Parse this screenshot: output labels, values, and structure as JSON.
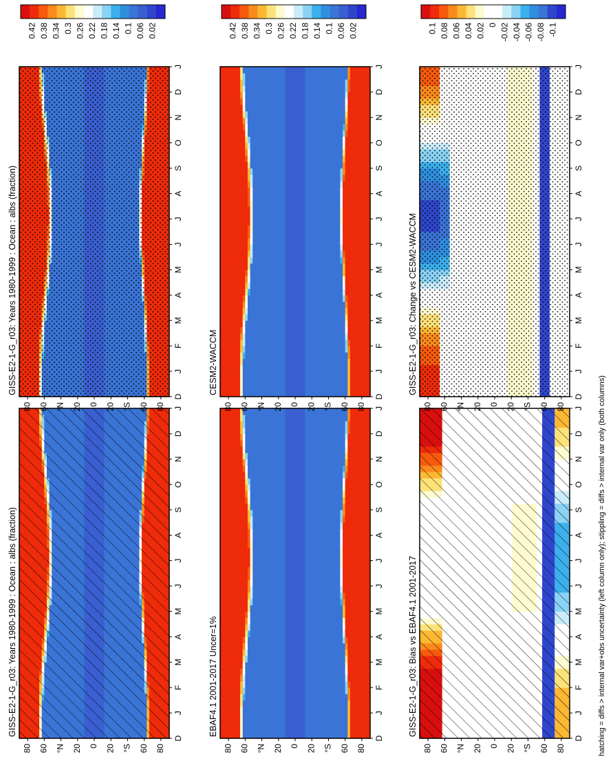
{
  "chart_data": {
    "type": "heatmap",
    "footer_note": "hatching = diffs > internal var+obs uncertainty (left column only); stippling = diffs > internal var only (both columns)",
    "axes": {
      "month_ticks": [
        "D",
        "J",
        "F",
        "M",
        "A",
        "M",
        "J",
        "J",
        "A",
        "S",
        "O",
        "N",
        "D",
        "J"
      ],
      "lat_ticks": [
        "80",
        "60",
        "°N",
        "20",
        "0",
        "20",
        "°S",
        "60",
        "80"
      ]
    },
    "palettes": {
      "abs": {
        "labels": [
          "0.42",
          "0.38",
          "0.34",
          "0.3",
          "0.26",
          "0.22",
          "0.18",
          "0.14",
          "0.1",
          "0.06",
          "0.02"
        ],
        "colors": [
          "#d90f0f",
          "#ee2b0a",
          "#f75a0c",
          "#fb8a1c",
          "#fdb833",
          "#fde27a",
          "#fffbd0",
          "#ffffff",
          "#c9ecf9",
          "#8ad3f5",
          "#3cb0ec",
          "#2f8fde",
          "#3a74d6",
          "#3a5fd0",
          "#2f46cc",
          "#2828d0"
        ]
      },
      "diff": {
        "labels": [
          "0.1",
          "0.08",
          "0.06",
          "0.04",
          "0.02",
          "0",
          "-0.02",
          "-0.04",
          "-0.06",
          "-0.08",
          "-0.1"
        ],
        "colors": [
          "#d90f0f",
          "#ee2b0a",
          "#f75a0c",
          "#fb8a1c",
          "#fdb833",
          "#fde27a",
          "#fffbd0",
          "#ffffff",
          "#ffffff",
          "#c9ecf9",
          "#8ad3f5",
          "#3cb0ec",
          "#2f8fde",
          "#3a74d6",
          "#2f46cc",
          "#2828d0"
        ]
      }
    },
    "panels": [
      {
        "title": "GISS-E2-1-G_r03: Years 1980-1999 : Ocean : albs (fraction)",
        "field": "albedo",
        "palette": "abs",
        "overlay": "hatch"
      },
      {
        "title": "GISS-E2-1-G_r03: Years 1980-1999 : Ocean : albs (fraction)",
        "field": "albedo",
        "palette": "abs",
        "overlay": "stipple"
      },
      {
        "title": "EBAF4.1 2001-2017 Uncer=1%",
        "field": "albedo",
        "palette": "abs",
        "overlay": "none"
      },
      {
        "title": "CESM2-WACCM",
        "field": "albedo",
        "palette": "abs",
        "overlay": "none"
      },
      {
        "title": "GISS-E2-1-G_r03: Bias vs EBAF4.1 2001-2017",
        "field": "bias",
        "palette": "diff",
        "overlay": "hatch"
      },
      {
        "title": "GISS-E2-1-G_r03: Change vs CESM2-WACCM",
        "field": "change",
        "palette": "diff",
        "overlay": "stipple"
      }
    ]
  }
}
